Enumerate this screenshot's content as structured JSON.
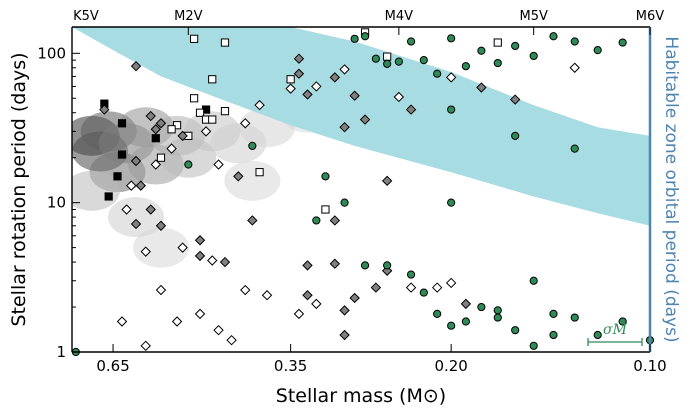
{
  "chart_data": {
    "type": "scatter",
    "xlabel": "Stellar mass (M⊙)",
    "ylabel": "Stellar rotation period (days)",
    "y2label": "Habitable zone orbital period (days)",
    "xscale": "log",
    "xlim": [
      0.75,
      0.1
    ],
    "yscale": "log",
    "ylim": [
      1,
      150
    ],
    "x_ticks": [
      0.65,
      0.35,
      0.2,
      0.1
    ],
    "x_tick_labels": [
      "0.65",
      "0.35",
      "0.20",
      "0.10"
    ],
    "y_ticks": [
      1,
      10,
      100
    ],
    "y_tick_labels": [
      "1",
      "10",
      "100"
    ],
    "top_axis": {
      "labels": [
        "K5V",
        "M2V",
        "M4V",
        "M5V",
        "M6V"
      ],
      "masses": [
        0.75,
        0.5,
        0.24,
        0.15,
        0.1
      ]
    },
    "annotation": "σM",
    "colors": {
      "habitable_zone": "#a8dce3",
      "green": "#2e8b57",
      "gray_diamond": "#808080",
      "right_axis": "#4f84b0"
    },
    "habitable_zone_band": {
      "mass": [
        0.75,
        0.65,
        0.55,
        0.45,
        0.35,
        0.28,
        0.2,
        0.15,
        0.12,
        0.1
      ],
      "upper_period": [
        150,
        150,
        150,
        150,
        150,
        120,
        75,
        45,
        32,
        28
      ],
      "lower_period": [
        150,
        105,
        70,
        50,
        33,
        24,
        16,
        11,
        8.5,
        7
      ]
    },
    "density_clusters": [
      {
        "mass": 0.7,
        "period": 28,
        "level": 0.9
      },
      {
        "mass": 0.68,
        "period": 22,
        "level": 0.8
      },
      {
        "mass": 0.66,
        "period": 30,
        "level": 0.7
      },
      {
        "mass": 0.64,
        "period": 16,
        "level": 0.6
      },
      {
        "mass": 0.62,
        "period": 25,
        "level": 0.55
      },
      {
        "mass": 0.58,
        "period": 32,
        "level": 0.45
      },
      {
        "mass": 0.56,
        "period": 18,
        "level": 0.4
      },
      {
        "mass": 0.52,
        "period": 28,
        "level": 0.3
      },
      {
        "mass": 0.5,
        "period": 20,
        "level": 0.25
      },
      {
        "mass": 0.46,
        "period": 30,
        "level": 0.2
      },
      {
        "mass": 0.42,
        "period": 25,
        "level": 0.15
      },
      {
        "mass": 0.38,
        "period": 32,
        "level": 0.12
      },
      {
        "mass": 0.7,
        "period": 12,
        "level": 0.25
      },
      {
        "mass": 0.6,
        "period": 8,
        "level": 0.15
      },
      {
        "mass": 0.55,
        "period": 5,
        "level": 0.1
      },
      {
        "mass": 0.4,
        "period": 14,
        "level": 0.1
      },
      {
        "mass": 0.33,
        "period": 40,
        "level": 0.08
      },
      {
        "mass": 0.3,
        "period": 55,
        "level": 0.06
      }
    ],
    "series": [
      {
        "name": "Filled squares",
        "marker": "square-filled",
        "points": [
          [
            0.67,
            46
          ],
          [
            0.63,
            34
          ],
          [
            0.63,
            21
          ],
          [
            0.64,
            15
          ],
          [
            0.66,
            11
          ],
          [
            0.56,
            27
          ],
          [
            0.47,
            42
          ]
        ]
      },
      {
        "name": "Open squares",
        "marker": "square-open",
        "points": [
          [
            0.49,
            125
          ],
          [
            0.44,
            118
          ],
          [
            0.46,
            67
          ],
          [
            0.49,
            50
          ],
          [
            0.48,
            40
          ],
          [
            0.47,
            36
          ],
          [
            0.52,
            33
          ],
          [
            0.5,
            28
          ],
          [
            0.55,
            20
          ],
          [
            0.53,
            31
          ],
          [
            0.46,
            36
          ],
          [
            0.44,
            41
          ],
          [
            0.39,
            16
          ],
          [
            0.35,
            67
          ],
          [
            0.31,
            9
          ],
          [
            0.27,
            138
          ],
          [
            0.25,
            95
          ],
          [
            0.17,
            118
          ]
        ]
      },
      {
        "name": "Gray diamonds",
        "marker": "diamond-filled",
        "points": [
          [
            0.67,
            42
          ],
          [
            0.6,
            82
          ],
          [
            0.57,
            38
          ],
          [
            0.55,
            34
          ],
          [
            0.56,
            31
          ],
          [
            0.6,
            19
          ],
          [
            0.59,
            13
          ],
          [
            0.57,
            9
          ],
          [
            0.55,
            7
          ],
          [
            0.51,
            28
          ],
          [
            0.48,
            4.4
          ],
          [
            0.44,
            4.0
          ],
          [
            0.4,
            7.6
          ],
          [
            0.34,
            73
          ],
          [
            0.34,
            92
          ],
          [
            0.33,
            53
          ],
          [
            0.3,
            69
          ],
          [
            0.29,
            32
          ],
          [
            0.28,
            52
          ],
          [
            0.27,
            36
          ],
          [
            0.25,
            14
          ],
          [
            0.23,
            42
          ],
          [
            0.18,
            59
          ],
          [
            0.16,
            49
          ],
          [
            0.33,
            3.8
          ],
          [
            0.33,
            2.4
          ],
          [
            0.3,
            7.6
          ],
          [
            0.3,
            3.9
          ],
          [
            0.29,
            1.9
          ],
          [
            0.29,
            1.3
          ],
          [
            0.28,
            2.3
          ],
          [
            0.26,
            2.7
          ],
          [
            0.25,
            3.5
          ],
          [
            0.19,
            2.1
          ],
          [
            0.6,
            7.2
          ],
          [
            0.48,
            5.6
          ],
          [
            0.42,
            15
          ]
        ]
      },
      {
        "name": "Open diamonds",
        "marker": "diamond-open",
        "points": [
          [
            0.61,
            13
          ],
          [
            0.56,
            18
          ],
          [
            0.53,
            23
          ],
          [
            0.47,
            30
          ],
          [
            0.45,
            18
          ],
          [
            0.41,
            34
          ],
          [
            0.39,
            45
          ],
          [
            0.35,
            58
          ],
          [
            0.32,
            60
          ],
          [
            0.29,
            78
          ],
          [
            0.24,
            51
          ],
          [
            0.2,
            69
          ],
          [
            0.13,
            80
          ],
          [
            0.62,
            9
          ],
          [
            0.58,
            4.7
          ],
          [
            0.51,
            5.0
          ],
          [
            0.46,
            4.1
          ],
          [
            0.41,
            2.6
          ],
          [
            0.32,
            2.1
          ],
          [
            0.23,
            2.7
          ],
          [
            0.21,
            2.7
          ],
          [
            0.2,
            2.9
          ],
          [
            0.55,
            2.6
          ],
          [
            0.52,
            1.6
          ],
          [
            0.63,
            1.6
          ],
          [
            0.58,
            1.1
          ],
          [
            0.48,
            1.8
          ],
          [
            0.45,
            1.4
          ],
          [
            0.43,
            1.2
          ],
          [
            0.38,
            2.4
          ],
          [
            0.34,
            1.8
          ]
        ]
      },
      {
        "name": "Green circles",
        "marker": "circle",
        "color": "#2e8b57",
        "points": [
          [
            0.5,
            18
          ],
          [
            0.4,
            24
          ],
          [
            0.31,
            15
          ],
          [
            0.29,
            10
          ],
          [
            0.28,
            125
          ],
          [
            0.27,
            130
          ],
          [
            0.26,
            92
          ],
          [
            0.25,
            85
          ],
          [
            0.24,
            88
          ],
          [
            0.23,
            120
          ],
          [
            0.22,
            90
          ],
          [
            0.21,
            73
          ],
          [
            0.2,
            126
          ],
          [
            0.19,
            82
          ],
          [
            0.18,
            104
          ],
          [
            0.17,
            86
          ],
          [
            0.16,
            112
          ],
          [
            0.15,
            96
          ],
          [
            0.14,
            130
          ],
          [
            0.13,
            120
          ],
          [
            0.12,
            105
          ],
          [
            0.11,
            118
          ],
          [
            0.2,
            42
          ],
          [
            0.16,
            28
          ],
          [
            0.13,
            23
          ],
          [
            0.2,
            10
          ],
          [
            0.32,
            7.6
          ],
          [
            0.27,
            3.8
          ],
          [
            0.25,
            3.8
          ],
          [
            0.23,
            3.3
          ],
          [
            0.22,
            2.5
          ],
          [
            0.21,
            1.8
          ],
          [
            0.2,
            1.5
          ],
          [
            0.19,
            1.6
          ],
          [
            0.18,
            2.0
          ],
          [
            0.17,
            1.9
          ],
          [
            0.16,
            1.4
          ],
          [
            0.15,
            3.0
          ],
          [
            0.14,
            1.8
          ],
          [
            0.14,
            1.3
          ],
          [
            0.13,
            1.7
          ],
          [
            0.12,
            1.3
          ],
          [
            0.11,
            1.6
          ],
          [
            0.1,
            1.2
          ],
          [
            0.74,
            1.0
          ],
          [
            0.15,
            1.1
          ],
          [
            0.17,
            1.7
          ]
        ]
      }
    ]
  }
}
